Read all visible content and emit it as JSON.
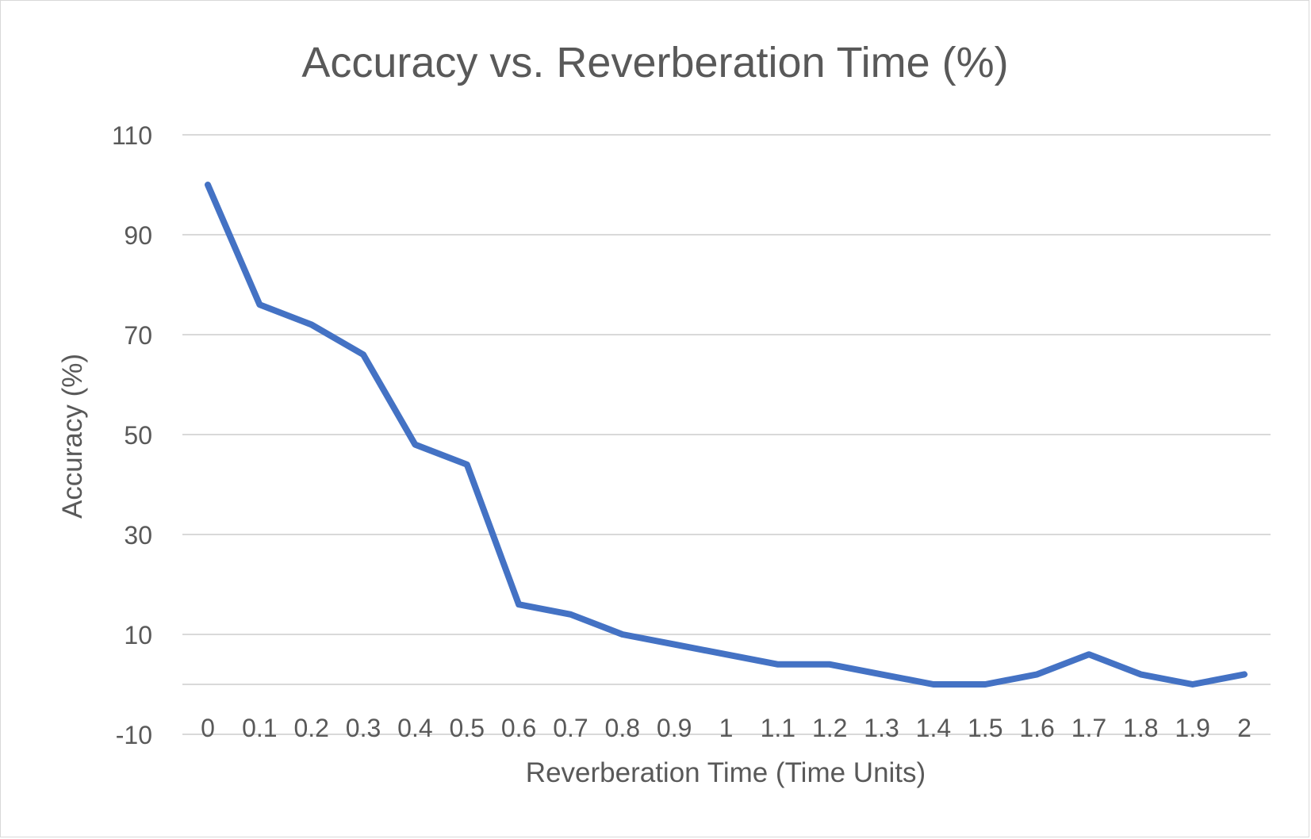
{
  "chart_data": {
    "type": "line",
    "title": "Accuracy vs. Reverberation Time (%)",
    "xlabel": "Reverberation Time (Time Units)",
    "ylabel": "Accuracy (%)",
    "categories": [
      "0",
      "0.1",
      "0.2",
      "0.3",
      "0.4",
      "0.5",
      "0.6",
      "0.7",
      "0.8",
      "0.9",
      "1",
      "1.1",
      "1.2",
      "1.3",
      "1.4",
      "1.5",
      "1.6",
      "1.7",
      "1.8",
      "1.9",
      "2"
    ],
    "series": [
      {
        "values": [
          100,
          76,
          72,
          66,
          48,
          44,
          16,
          14,
          10,
          8,
          6,
          4,
          4,
          2,
          0,
          0,
          2,
          6,
          2,
          0,
          2
        ],
        "color": "#4472c4"
      }
    ],
    "ylim": [
      -10,
      110
    ],
    "yticks": [
      -10,
      10,
      30,
      50,
      70,
      90,
      110
    ],
    "gridlines_at": [
      -10,
      0,
      10,
      30,
      50,
      70,
      90,
      110
    ],
    "grid": true,
    "legend": "none"
  }
}
